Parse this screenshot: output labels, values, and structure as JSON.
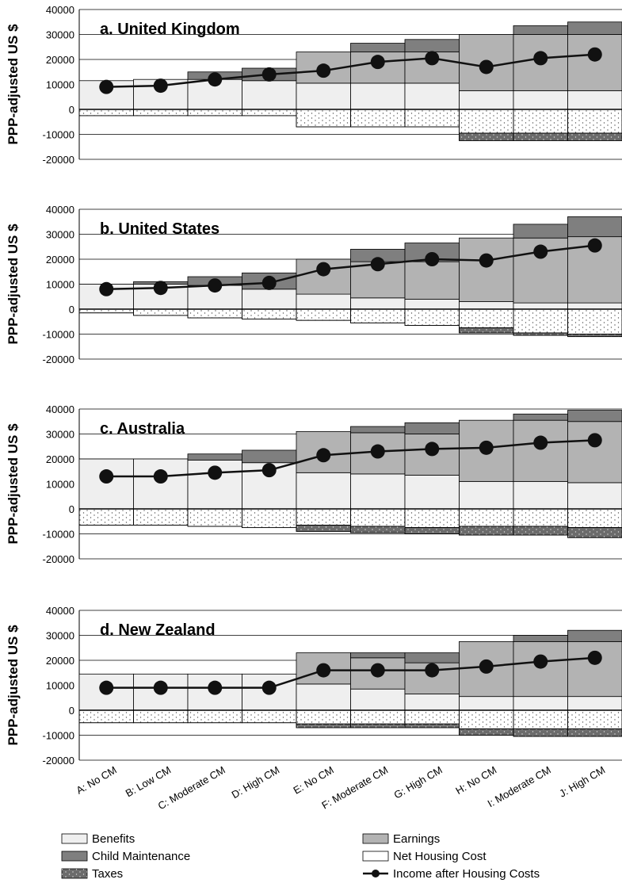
{
  "categories": [
    "A: No CM",
    "B: Low CM",
    "C: Moderate CM",
    "D: High CM",
    "E: No CM",
    "F: Moderate CM",
    "G: High CM",
    "H: No CM",
    "I: Moderate CM",
    "J: High CM"
  ],
  "ylabel": "PPP-adjusted US $",
  "yticks": [
    40000,
    30000,
    20000,
    10000,
    0,
    -10000,
    -20000
  ],
  "colors": {
    "benefits": "#efefef",
    "earnings": "#b3b3b3",
    "child_maintenance": "#7f7f7f",
    "net_housing": "#ffffff",
    "taxes": "#6b6b6b",
    "line": "#111111"
  },
  "legend": [
    {
      "key": "benefits",
      "label": "Benefits",
      "symbol": "box-benefits"
    },
    {
      "key": "earnings",
      "label": "Earnings",
      "symbol": "box-earnings"
    },
    {
      "key": "child_maintenance",
      "label": "Child Maintenance",
      "symbol": "box-cm"
    },
    {
      "key": "net_housing",
      "label": "Net Housing Cost",
      "symbol": "box-housing"
    },
    {
      "key": "taxes",
      "label": "Taxes",
      "symbol": "box-taxes"
    },
    {
      "key": "income",
      "label": "Income after Housing Costs",
      "symbol": "line-dot"
    }
  ],
  "chart_data": [
    {
      "type": "bar",
      "stacked": true,
      "title": "a. United Kingdom",
      "ylim": [
        -20000,
        40000
      ],
      "benefits": [
        11500,
        12000,
        12000,
        11500,
        10500,
        10500,
        10500,
        7500,
        7500,
        7500
      ],
      "earnings": [
        0,
        0,
        0,
        0,
        12500,
        12500,
        12500,
        22500,
        22500,
        22500
      ],
      "child_maintenance": [
        0,
        0,
        3000,
        5000,
        0,
        3500,
        5000,
        0,
        3500,
        5000
      ],
      "net_housing": [
        -2500,
        -2500,
        -2500,
        -2500,
        -7000,
        -7000,
        -7000,
        -9500,
        -9500,
        -9500
      ],
      "taxes": [
        0,
        0,
        0,
        0,
        0,
        0,
        0,
        -3000,
        -3000,
        -3000
      ],
      "income": [
        9000,
        9500,
        12000,
        14000,
        15500,
        19000,
        20500,
        17000,
        20500,
        22000
      ]
    },
    {
      "type": "bar",
      "stacked": true,
      "title": "b. United States",
      "ylim": [
        -20000,
        40000
      ],
      "benefits": [
        10000,
        10000,
        9500,
        8000,
        6000,
        4500,
        4000,
        3000,
        2500,
        2500
      ],
      "earnings": [
        0,
        0,
        0,
        0,
        14000,
        14500,
        15000,
        25500,
        26000,
        26500
      ],
      "child_maintenance": [
        0,
        1000,
        3500,
        6500,
        0,
        5000,
        7500,
        0,
        5500,
        8000
      ],
      "net_housing": [
        -1500,
        -2500,
        -3500,
        -4000,
        -4500,
        -5500,
        -6500,
        -7500,
        -9500,
        -10000
      ],
      "taxes": [
        0,
        0,
        0,
        0,
        0,
        0,
        0,
        -2000,
        -1000,
        -1000
      ],
      "income": [
        8000,
        8500,
        9500,
        10500,
        16000,
        18000,
        20000,
        19500,
        23000,
        25500
      ]
    },
    {
      "type": "bar",
      "stacked": true,
      "title": "c. Australia",
      "ylim": [
        -20000,
        40000
      ],
      "benefits": [
        20000,
        20000,
        19500,
        18500,
        14500,
        14000,
        13500,
        11000,
        11000,
        10500
      ],
      "earnings": [
        0,
        0,
        0,
        0,
        16500,
        16500,
        16500,
        24500,
        24500,
        24500
      ],
      "child_maintenance": [
        0,
        0,
        2500,
        5000,
        0,
        2500,
        4500,
        0,
        2500,
        4500
      ],
      "net_housing": [
        -6500,
        -6500,
        -7000,
        -7500,
        -6500,
        -7000,
        -7500,
        -7000,
        -7000,
        -7500
      ],
      "taxes": [
        0,
        0,
        0,
        0,
        -2500,
        -2500,
        -2500,
        -3500,
        -3500,
        -4000
      ],
      "income": [
        13000,
        13000,
        14500,
        15500,
        21500,
        23000,
        24000,
        24500,
        26500,
        27500
      ]
    },
    {
      "type": "bar",
      "stacked": true,
      "title": "d. New Zealand",
      "ylim": [
        -20000,
        40000
      ],
      "benefits": [
        14500,
        14500,
        14500,
        14500,
        10500,
        8500,
        6500,
        5500,
        5500,
        5500
      ],
      "earnings": [
        0,
        0,
        0,
        0,
        12500,
        12500,
        12500,
        22000,
        22000,
        22000
      ],
      "child_maintenance": [
        0,
        0,
        0,
        0,
        0,
        2000,
        4000,
        0,
        2500,
        4500
      ],
      "net_housing": [
        -5000,
        -5000,
        -5000,
        -5000,
        -5500,
        -5500,
        -5500,
        -7500,
        -7500,
        -7500
      ],
      "taxes": [
        0,
        0,
        0,
        0,
        -1500,
        -1500,
        -1500,
        -2500,
        -3000,
        -3000
      ],
      "income": [
        9000,
        9000,
        9000,
        9000,
        16000,
        16000,
        16000,
        17500,
        19500,
        21000
      ]
    }
  ]
}
